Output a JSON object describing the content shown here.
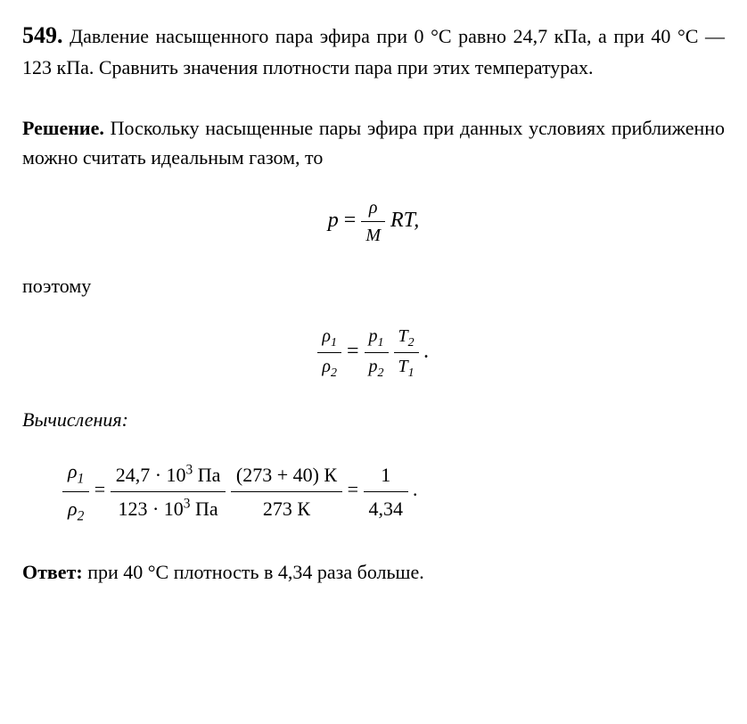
{
  "problem": {
    "number": "549.",
    "text": "Давление насыщенного пара эфира при 0 °С равно 24,7 кПа, а при 40 °С — 123 кПа. Сравнить значения плотности пара при этих температурах."
  },
  "solution": {
    "label": "Решение.",
    "text": "Поскольку насыщенные пары эфира при данных условиях приближенно можно считать идеальным газом, то"
  },
  "equation1": {
    "lhs": "p",
    "frac_num": "ρ",
    "frac_den": "M",
    "rhs": "RT,"
  },
  "word_therefore": "поэтому",
  "equation2": {
    "lhs_num": "ρ",
    "lhs_num_sub": "1",
    "lhs_den": "ρ",
    "lhs_den_sub": "2",
    "rhs1_num": "p",
    "rhs1_num_sub": "1",
    "rhs1_den": "p",
    "rhs1_den_sub": "2",
    "rhs2_num": "T",
    "rhs2_num_sub": "2",
    "rhs2_den": "T",
    "rhs2_den_sub": "1",
    "end": "."
  },
  "calc_label": "Вычисления:",
  "calculation": {
    "lhs_num_var": "ρ",
    "lhs_num_sub": "1",
    "lhs_den_var": "ρ",
    "lhs_den_sub": "2",
    "val1": "24,7 · 10",
    "val1_sup": "3",
    "val1_unit": " Па",
    "val2": "123 · 10",
    "val2_sup": "3",
    "val2_unit": " Па",
    "val3_num": "(273 + 40) К",
    "val3_den": "273 К",
    "result_num": "1",
    "result_den": "4,34",
    "end": "."
  },
  "answer": {
    "label": "Ответ:",
    "text": "при 40 °С плотность в 4,34 раза больше."
  }
}
